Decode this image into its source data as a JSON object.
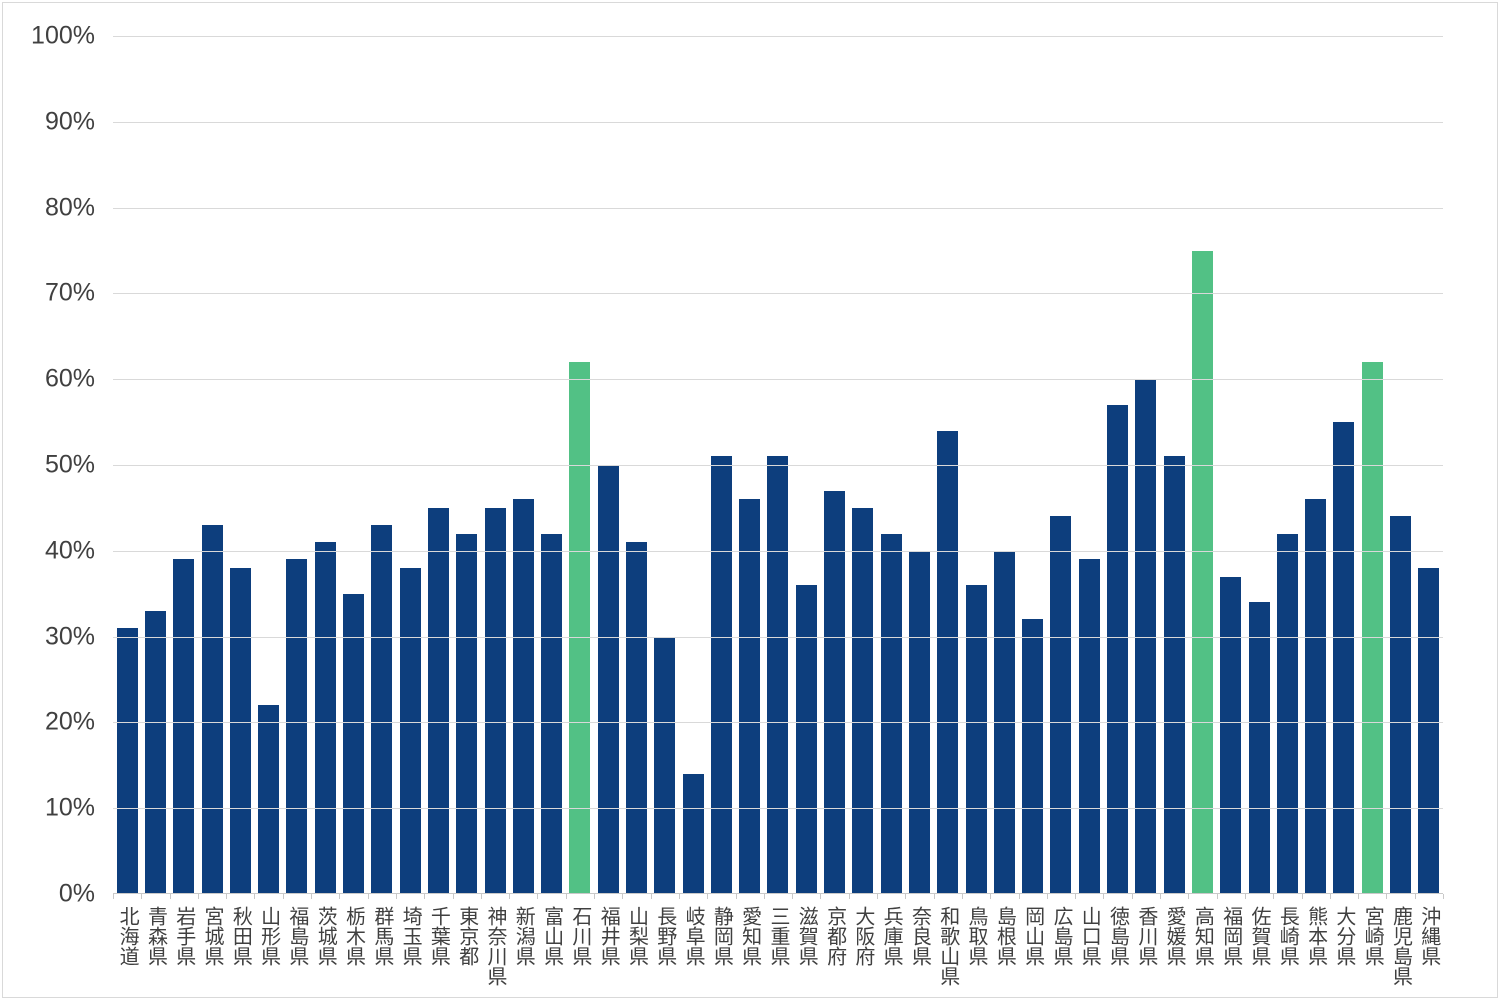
{
  "chart_data": {
    "type": "bar",
    "title": "",
    "xlabel": "",
    "ylabel": "",
    "ylim": [
      0,
      100
    ],
    "grid": true,
    "legend": false,
    "yticks": [
      0,
      10,
      20,
      30,
      40,
      50,
      60,
      70,
      80,
      90,
      100
    ],
    "ytick_labels": [
      "0%",
      "10%",
      "20%",
      "30%",
      "40%",
      "50%",
      "60%",
      "70%",
      "80%",
      "90%",
      "100%"
    ],
    "categories": [
      "北海道",
      "青森県",
      "岩手県",
      "宮城県",
      "秋田県",
      "山形県",
      "福島県",
      "茨城県",
      "栃木県",
      "群馬県",
      "埼玉県",
      "千葉県",
      "東京都",
      "神奈川県",
      "新潟県",
      "富山県",
      "石川県",
      "福井県",
      "山梨県",
      "長野県",
      "岐阜県",
      "静岡県",
      "愛知県",
      "三重県",
      "滋賀県",
      "京都府",
      "大阪府",
      "兵庫県",
      "奈良県",
      "和歌山県",
      "鳥取県",
      "島根県",
      "岡山県",
      "広島県",
      "山口県",
      "徳島県",
      "香川県",
      "愛媛県",
      "高知県",
      "福岡県",
      "佐賀県",
      "長崎県",
      "熊本県",
      "大分県",
      "宮崎県",
      "鹿児島県",
      "沖縄県"
    ],
    "values": [
      31,
      33,
      39,
      43,
      38,
      22,
      39,
      41,
      35,
      43,
      38,
      45,
      42,
      45,
      46,
      42,
      62,
      50,
      41,
      30,
      14,
      51,
      46,
      51,
      36,
      47,
      45,
      42,
      40,
      54,
      36,
      40,
      32,
      44,
      39,
      57,
      60,
      51,
      75,
      37,
      34,
      42,
      46,
      55,
      62,
      44,
      38
    ],
    "highlighted_categories": [
      "石川県",
      "高知県",
      "宮崎県"
    ],
    "colors": {
      "bar": "#0d3e7d",
      "highlight": "#52c185",
      "gridline": "#d9d9d9",
      "axis": "#c9c9c9",
      "label": "#404040",
      "background": "#ffffff",
      "frame_border": "#d9d9d9"
    }
  }
}
